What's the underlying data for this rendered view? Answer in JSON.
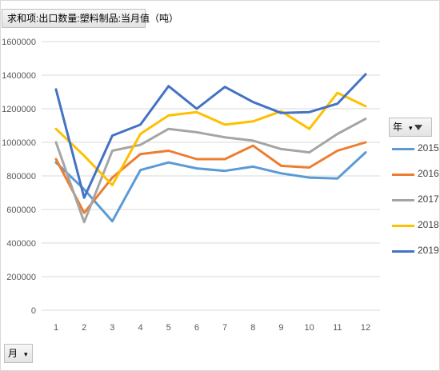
{
  "value_field_button": "求和项:出口数量:塑料制品:当月值（吨）",
  "column_field_button": "年",
  "row_field_button": "月",
  "chart_data": {
    "type": "line",
    "x": [
      1,
      2,
      3,
      4,
      5,
      6,
      7,
      8,
      9,
      10,
      11,
      12
    ],
    "ylim": [
      0,
      1600000
    ],
    "yticks": [
      0,
      200000,
      400000,
      600000,
      800000,
      1000000,
      1200000,
      1400000,
      1600000
    ],
    "grid": true,
    "legend_position": "right",
    "series": [
      {
        "name": "2015",
        "color": "#5b9bd5",
        "values": [
          880000,
          720000,
          530000,
          835000,
          880000,
          845000,
          830000,
          855000,
          815000,
          790000,
          785000,
          940000
        ]
      },
      {
        "name": "2016",
        "color": "#ed7d31",
        "values": [
          900000,
          580000,
          790000,
          930000,
          950000,
          900000,
          900000,
          980000,
          860000,
          850000,
          950000,
          1000000
        ]
      },
      {
        "name": "2017",
        "color": "#a5a5a5",
        "values": [
          1000000,
          525000,
          950000,
          985000,
          1080000,
          1060000,
          1030000,
          1010000,
          960000,
          940000,
          1050000,
          1140000
        ]
      },
      {
        "name": "2018",
        "color": "#ffc000",
        "values": [
          1080000,
          920000,
          745000,
          1050000,
          1160000,
          1180000,
          1105000,
          1125000,
          1185000,
          1080000,
          1295000,
          1215000
        ]
      },
      {
        "name": "2019",
        "color": "#4472c4",
        "values": [
          1315000,
          670000,
          1040000,
          1105000,
          1335000,
          1200000,
          1330000,
          1240000,
          1175000,
          1180000,
          1230000,
          1405000
        ]
      }
    ]
  }
}
